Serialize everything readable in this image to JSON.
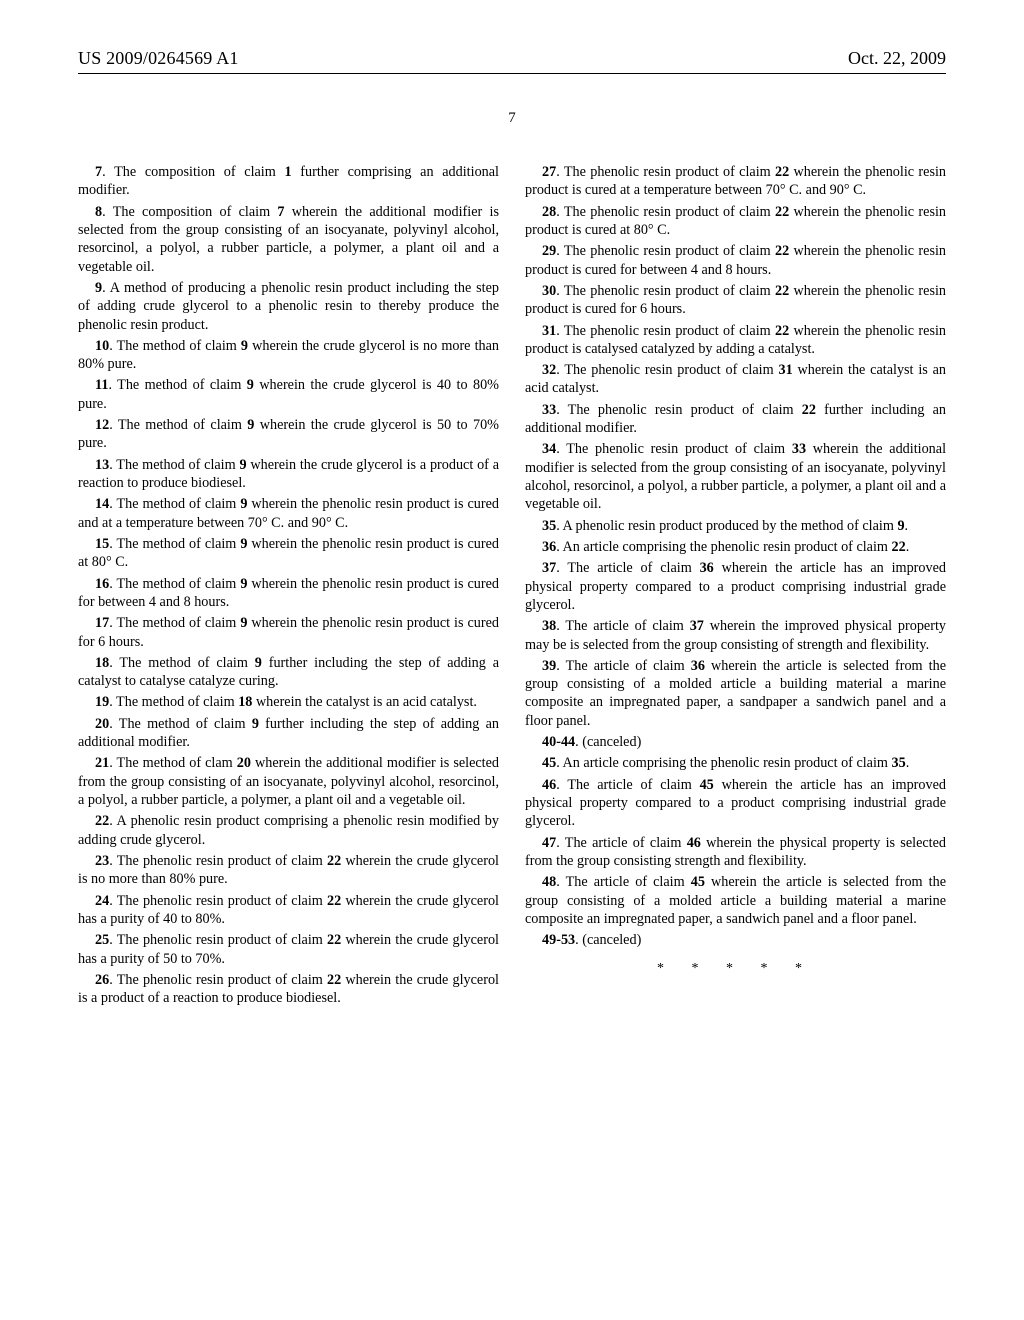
{
  "header": {
    "publication_number": "US 2009/0264569 A1",
    "publication_date": "Oct. 22, 2009"
  },
  "page_number": "7",
  "claims": [
    {
      "n": "7",
      "body": ". The composition of claim ",
      "ref": "1",
      "after": " further comprising an additional modifier."
    },
    {
      "n": "8",
      "body": ". The composition of claim ",
      "ref": "7",
      "after": " wherein the additional modifier is selected from the group consisting of an isocyanate, polyvinyl alcohol, resorcinol, a polyol, a rubber particle, a polymer, a plant oil and a vegetable oil."
    },
    {
      "n": "9",
      "body": ". A method of producing a phenolic resin product including the step of adding crude glycerol to a phenolic resin to thereby produce the phenolic resin product.",
      "ref": null,
      "after": ""
    },
    {
      "n": "10",
      "body": ". The method of claim ",
      "ref": "9",
      "after": " wherein the crude glycerol is no more than 80% pure."
    },
    {
      "n": "11",
      "body": ". The method of claim ",
      "ref": "9",
      "after": " wherein the crude glycerol is 40 to 80% pure."
    },
    {
      "n": "12",
      "body": ". The method of claim ",
      "ref": "9",
      "after": " wherein the crude glycerol is 50 to 70% pure."
    },
    {
      "n": "13",
      "body": ". The method of claim ",
      "ref": "9",
      "after": " wherein the crude glycerol is a product of a reaction to produce biodiesel."
    },
    {
      "n": "14",
      "body": ". The method of claim ",
      "ref": "9",
      "after": " wherein the phenolic resin product is cured and at a temperature between 70° C. and 90° C."
    },
    {
      "n": "15",
      "body": ". The method of claim ",
      "ref": "9",
      "after": " wherein the phenolic resin product is cured at 80° C."
    },
    {
      "n": "16",
      "body": ". The method of claim ",
      "ref": "9",
      "after": " wherein the phenolic resin product is cured for between 4 and 8 hours."
    },
    {
      "n": "17",
      "body": ". The method of claim ",
      "ref": "9",
      "after": " wherein the phenolic resin product is cured for 6 hours."
    },
    {
      "n": "18",
      "body": ". The method of claim ",
      "ref": "9",
      "after": " further including the step of adding a catalyst to catalyse catalyze curing."
    },
    {
      "n": "19",
      "body": ". The method of claim ",
      "ref": "18",
      "after": " wherein the catalyst is an acid catalyst."
    },
    {
      "n": "20",
      "body": ". The method of claim ",
      "ref": "9",
      "after": " further including the step of adding an additional modifier."
    },
    {
      "n": "21",
      "body": ". The method of clam ",
      "ref": "20",
      "after": " wherein the additional modifier is selected from the group consisting of an isocyanate, polyvinyl alcohol, resorcinol, a polyol, a rubber particle, a polymer, a plant oil and a vegetable oil."
    },
    {
      "n": "22",
      "body": ". A phenolic resin product comprising a phenolic resin modified by adding crude glycerol.",
      "ref": null,
      "after": ""
    },
    {
      "n": "23",
      "body": ". The phenolic resin product of claim ",
      "ref": "22",
      "after": " wherein the crude glycerol is no more than 80% pure."
    },
    {
      "n": "24",
      "body": ". The phenolic resin product of claim ",
      "ref": "22",
      "after": " wherein the crude glycerol has a purity of 40 to 80%."
    },
    {
      "n": "25",
      "body": ". The phenolic resin product of claim ",
      "ref": "22",
      "after": " wherein the crude glycerol has a purity of 50 to 70%."
    },
    {
      "n": "26",
      "body": ". The phenolic resin product of claim ",
      "ref": "22",
      "after": " wherein the crude glycerol is a product of a reaction to produce biodiesel."
    },
    {
      "n": "27",
      "body": ". The phenolic resin product of claim ",
      "ref": "22",
      "after": " wherein the phenolic resin product is cured at a temperature between 70° C. and 90° C."
    },
    {
      "n": "28",
      "body": ". The phenolic resin product of claim ",
      "ref": "22",
      "after": " wherein the phenolic resin product is cured at 80° C."
    },
    {
      "n": "29",
      "body": ". The phenolic resin product of claim ",
      "ref": "22",
      "after": " wherein the phenolic resin product is cured for between 4 and 8 hours."
    },
    {
      "n": "30",
      "body": ". The phenolic resin product of claim ",
      "ref": "22",
      "after": " wherein the phenolic resin product is cured for 6 hours."
    },
    {
      "n": "31",
      "body": ". The phenolic resin product of claim ",
      "ref": "22",
      "after": " wherein the phenolic resin product is catalysed catalyzed by adding a catalyst."
    },
    {
      "n": "32",
      "body": ". The phenolic resin product of claim ",
      "ref": "31",
      "after": " wherein the catalyst is an acid catalyst."
    },
    {
      "n": "33",
      "body": ". The phenolic resin product of claim ",
      "ref": "22",
      "after": " further including an additional modifier."
    },
    {
      "n": "34",
      "body": ". The phenolic resin product of claim ",
      "ref": "33",
      "after": " wherein the additional modifier is selected from the group consisting of an isocyanate, polyvinyl alcohol, resorcinol, a polyol, a rubber particle, a polymer, a plant oil and a vegetable oil."
    },
    {
      "n": "35",
      "body": ". A phenolic resin product produced by the method of claim ",
      "ref": "9",
      "after": "."
    },
    {
      "n": "36",
      "body": ". An article comprising the phenolic resin product of claim ",
      "ref": "22",
      "after": "."
    },
    {
      "n": "37",
      "body": ". The article of claim ",
      "ref": "36",
      "after": " wherein the article has an improved physical property compared to a product comprising industrial grade glycerol."
    },
    {
      "n": "38",
      "body": ". The article of claim ",
      "ref": "37",
      "after": " wherein the improved physical property may be is selected from the group consisting of strength and flexibility."
    },
    {
      "n": "39",
      "body": ". The article of claim ",
      "ref": "36",
      "after": " wherein the article is selected from the group consisting of a molded article a building material a marine composite an impregnated paper, a sandpaper a sandwich panel and a floor panel."
    },
    {
      "n": "40-44",
      "body": ". (canceled)",
      "ref": null,
      "after": ""
    },
    {
      "n": "45",
      "body": ". An article comprising the phenolic resin product of claim ",
      "ref": "35",
      "after": "."
    },
    {
      "n": "46",
      "body": ". The article of claim ",
      "ref": "45",
      "after": " wherein the article has an improved physical property compared to a product comprising industrial grade glycerol."
    },
    {
      "n": "47",
      "body": ". The article of claim ",
      "ref": "46",
      "after": " wherein the physical property is selected from the group consisting strength and flexibility."
    },
    {
      "n": "48",
      "body": ". The article of claim ",
      "ref": "45",
      "after": " wherein the article is selected from the group consisting of a molded article a building material a marine composite an impregnated paper, a sandwich panel and a floor panel."
    },
    {
      "n": "49-53",
      "body": ". (canceled)",
      "ref": null,
      "after": ""
    }
  ],
  "stars": "* * * * *"
}
